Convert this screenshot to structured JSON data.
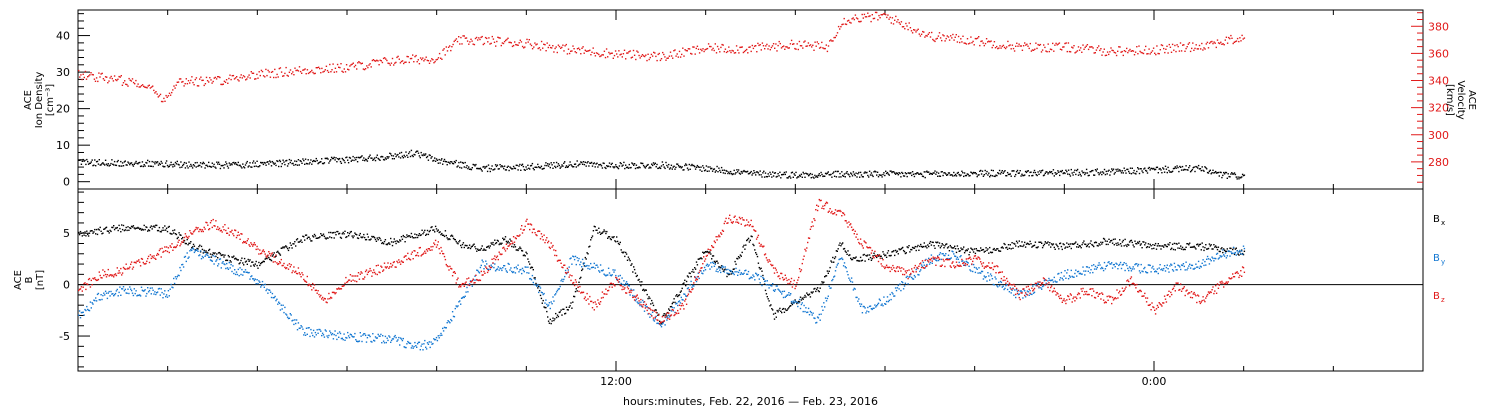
{
  "chart_data": [
    {
      "type": "scatter",
      "panel": "top",
      "ylabel_left": [
        "ACE",
        "Ion Density",
        "[cm⁻³]"
      ],
      "ylabel_right": [
        "ACE",
        "Velocity",
        "[km/s]"
      ],
      "x_ticks": [
        {
          "label": "12:00",
          "hour": 12
        },
        {
          "label": "0:00",
          "hour": 24
        }
      ],
      "xlim_hours": [
        0,
        30
      ],
      "left_axis": {
        "ylim": [
          -2,
          47
        ],
        "ticks": [
          "0",
          "10",
          "20",
          "30",
          "40"
        ],
        "tick_values": [
          0,
          10,
          20,
          30,
          40
        ]
      },
      "right_axis": {
        "ylim": [
          260,
          392
        ],
        "ticks": [
          "280",
          "300",
          "320",
          "340",
          "360",
          "380"
        ],
        "tick_values": [
          280,
          300,
          320,
          340,
          360,
          380
        ],
        "color": "#e11919"
      },
      "series": [
        {
          "name": "Velocity",
          "axis": "right",
          "color": "#e11919",
          "x": [
            0,
            1.5,
            1.9,
            2.2,
            3.0,
            4.0,
            5.0,
            6.0,
            7.0,
            8.0,
            8.5,
            9.0,
            10.0,
            11.0,
            12.0,
            13.0,
            14.0,
            15.0,
            16.0,
            16.7,
            17.0,
            17.2,
            18.0,
            19.0,
            20.0,
            21.0,
            22.0,
            23.0,
            24.0,
            25.0,
            26.0
          ],
          "y": [
            345,
            338,
            326,
            340,
            340,
            345,
            348,
            350,
            355,
            357,
            370,
            370,
            368,
            363,
            360,
            358,
            364,
            364,
            367,
            365,
            383,
            386,
            388,
            373,
            370,
            365,
            365,
            362,
            363,
            366,
            372
          ]
        },
        {
          "name": "Ion Density",
          "axis": "left",
          "color": "#000000",
          "x": [
            0,
            1.0,
            2.0,
            3.0,
            4.0,
            5.0,
            6.0,
            7.0,
            7.5,
            8.0,
            9.0,
            10.0,
            11.0,
            12.0,
            13.0,
            14.0,
            15.0,
            16.0,
            17.0,
            18.0,
            19.0,
            20.0,
            21.0,
            22.0,
            23.0,
            24.0,
            25.0,
            25.5,
            26.0
          ],
          "y": [
            5.5,
            5.3,
            5.0,
            4.6,
            5.0,
            5.5,
            6.2,
            7.2,
            8.0,
            6.0,
            3.8,
            4.2,
            5.0,
            4.6,
            4.7,
            3.8,
            2.4,
            2.0,
            2.2,
            2.2,
            2.2,
            2.4,
            2.5,
            2.6,
            2.8,
            3.4,
            3.8,
            2.0,
            1.6
          ]
        }
      ]
    },
    {
      "type": "scatter",
      "panel": "bottom",
      "ylabel_left": [
        "ACE",
        "B",
        "[nT]"
      ],
      "x_ticks": [
        {
          "label": "12:00",
          "hour": 12
        },
        {
          "label": "0:00",
          "hour": 24
        }
      ],
      "xlim_hours": [
        0,
        30
      ],
      "left_axis": {
        "ylim": [
          -8.4,
          9.3
        ],
        "ticks": [
          "-5",
          "0",
          "5"
        ],
        "tick_values": [
          -5,
          0,
          5
        ]
      },
      "xlabel": "hours:minutes, Feb. 22, 2016 — Feb. 23, 2016",
      "legend": [
        {
          "label": "B",
          "sub": "x",
          "color": "#000000"
        },
        {
          "label": "B",
          "sub": "y",
          "color": "#1478d2"
        },
        {
          "label": "B",
          "sub": "z",
          "color": "#e11919"
        }
      ],
      "series": [
        {
          "name": "Bx",
          "color": "#000000",
          "x": [
            0,
            1.0,
            2.0,
            2.5,
            3.0,
            4.0,
            5.0,
            6.0,
            7.0,
            8.0,
            8.5,
            9.0,
            9.5,
            10.0,
            10.5,
            11.0,
            11.5,
            12.0,
            13.0,
            14.0,
            14.5,
            15.0,
            15.5,
            16.0,
            16.5,
            17.0,
            17.3,
            18.0,
            19.0,
            20.0,
            21.0,
            22.0,
            23.0,
            24.0,
            25.0,
            25.5,
            26.0
          ],
          "y": [
            5.0,
            5.6,
            5.5,
            4.0,
            3.0,
            2.0,
            4.5,
            5.0,
            4.2,
            5.5,
            4.0,
            3.5,
            4.5,
            3.0,
            -3.5,
            -2.0,
            5.5,
            4.5,
            -3.5,
            3.5,
            1.0,
            4.8,
            -3.0,
            -1.5,
            -0.5,
            4.0,
            2.5,
            3.0,
            4.0,
            3.2,
            4.0,
            3.8,
            4.3,
            3.8,
            3.8,
            3.5,
            3.2
          ]
        },
        {
          "name": "By",
          "color": "#1478d2",
          "x": [
            0,
            0.5,
            1.0,
            2.0,
            2.5,
            3.0,
            4.0,
            5.0,
            6.0,
            7.0,
            7.5,
            8.0,
            9.0,
            10.0,
            10.5,
            11.0,
            12.0,
            13.0,
            14.0,
            15.0,
            16.0,
            16.5,
            17.0,
            17.5,
            18.0,
            18.5,
            19.0,
            19.5,
            20.0,
            21.0,
            22.0,
            23.0,
            24.0,
            25.0,
            25.5,
            26.0
          ],
          "y": [
            -3.0,
            -1.0,
            -0.5,
            -0.8,
            3.5,
            2.5,
            0.5,
            -4.5,
            -5.0,
            -5.2,
            -6.0,
            -5.5,
            2.0,
            1.5,
            -2.0,
            2.5,
            1.0,
            -4.0,
            2.0,
            1.0,
            -1.5,
            -3.5,
            3.0,
            -2.5,
            -1.5,
            0.5,
            2.5,
            3.0,
            1.5,
            -1.0,
            1.0,
            2.0,
            1.5,
            2.0,
            3.0,
            3.5
          ]
        },
        {
          "name": "Bz",
          "color": "#e11919",
          "x": [
            0,
            0.5,
            1.0,
            1.5,
            2.0,
            2.5,
            3.0,
            3.5,
            4.0,
            5.0,
            5.5,
            6.0,
            7.0,
            8.0,
            8.5,
            9.0,
            9.5,
            10.0,
            10.5,
            11.0,
            11.5,
            12.0,
            13.0,
            13.5,
            14.0,
            14.5,
            15.0,
            15.5,
            16.0,
            16.5,
            17.0,
            17.5,
            18.0,
            18.5,
            19.0,
            19.5,
            20.0,
            20.5,
            21.0,
            21.5,
            22.0,
            22.5,
            23.0,
            23.5,
            24.0,
            24.5,
            25.0,
            25.5,
            26.0
          ],
          "y": [
            -0.5,
            1.0,
            1.5,
            2.5,
            3.5,
            5.0,
            6.0,
            5.0,
            3.5,
            1.0,
            -1.5,
            0.5,
            2.0,
            4.0,
            0.0,
            1.0,
            3.5,
            6.0,
            4.0,
            0.5,
            -2.0,
            0.5,
            -3.5,
            -2.0,
            3.0,
            6.5,
            6.0,
            1.5,
            0.0,
            8.0,
            7.0,
            4.0,
            2.0,
            1.0,
            2.5,
            2.0,
            2.5,
            1.5,
            -1.0,
            0.5,
            -1.5,
            -0.5,
            -1.5,
            0.5,
            -2.5,
            0.0,
            -1.5,
            0.0,
            1.5
          ]
        }
      ]
    }
  ]
}
